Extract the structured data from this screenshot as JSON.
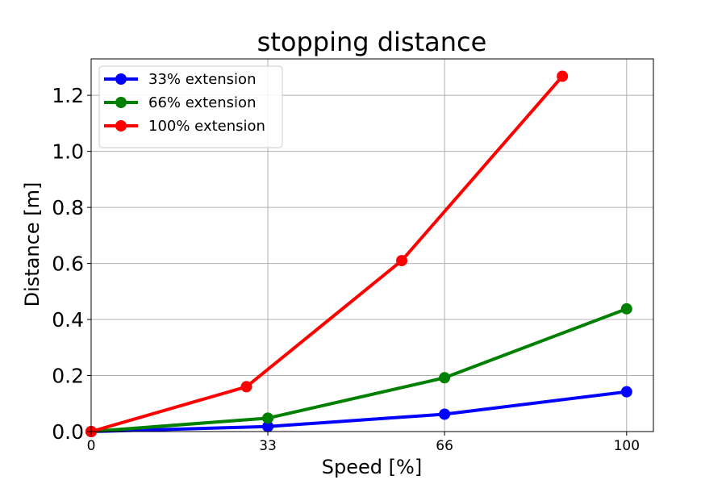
{
  "chart_data": {
    "type": "line",
    "title": "stopping distance",
    "xlabel": "Speed [%]",
    "ylabel": "Distance [m]",
    "xlim": [
      0,
      105
    ],
    "ylim": [
      0,
      1.33
    ],
    "xticks": [
      0,
      33,
      66,
      100
    ],
    "xtick_labels": [
      "0",
      "33",
      "66",
      "100"
    ],
    "yticks": [
      0.0,
      0.2,
      0.4,
      0.6,
      0.8,
      1.0,
      1.2
    ],
    "ytick_labels": [
      "0.0",
      "0.2",
      "0.4",
      "0.6",
      "0.8",
      "1.0",
      "1.2"
    ],
    "grid": true,
    "legend_position": "top-left",
    "series": [
      {
        "name": "33% extension",
        "color": "#0000ff",
        "x": [
          0,
          33,
          66,
          100
        ],
        "y": [
          0.0,
          0.018,
          0.062,
          0.142
        ]
      },
      {
        "name": "66% extension",
        "color": "#008000",
        "x": [
          0,
          33,
          66,
          100
        ],
        "y": [
          0.0,
          0.048,
          0.192,
          0.438
        ]
      },
      {
        "name": "100% extension",
        "color": "#ff0000",
        "x": [
          0,
          29,
          58,
          88
        ],
        "y": [
          0.0,
          0.16,
          0.61,
          1.268
        ]
      }
    ]
  }
}
